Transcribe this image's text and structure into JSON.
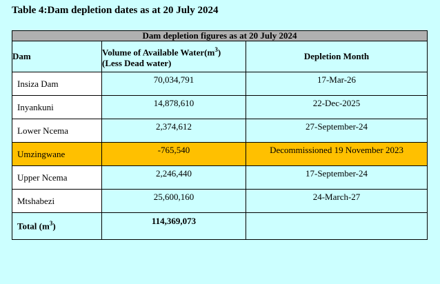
{
  "caption": "Table 4:Dam depletion dates as at 20 July 2024",
  "table": {
    "title": "Dam depletion figures as at 20 July 2024",
    "headers": {
      "dam": "Dam",
      "volume_line1": "Volume of Available Water(m",
      "volume_sup": "3",
      "volume_line1_end": ")",
      "volume_line2": "(Less Dead water)",
      "depletion": "Depletion Month"
    },
    "rows": [
      {
        "dam": "Insiza Dam",
        "volume": "70,034,791",
        "depletion": "17-Mar-26"
      },
      {
        "dam": "Inyankuni",
        "volume": "14,878,610",
        "depletion": "22-Dec-2025"
      },
      {
        "dam": "Lower Ncema",
        "volume": "2,374,612",
        "depletion": "27-September-24"
      },
      {
        "dam": "Umzingwane",
        "volume": "-765,540",
        "depletion": "Decommissioned 19 November 2023"
      },
      {
        "dam": "Upper Ncema",
        "volume": "2,246,440",
        "depletion": "17-September-24"
      },
      {
        "dam": "Mtshabezi",
        "volume": "25,600,160",
        "depletion": "24-March-27"
      }
    ],
    "total": {
      "label": "Total (m",
      "label_sup": "3",
      "label_end": ")",
      "volume": "114,369,073",
      "depletion": ""
    },
    "highlight_color": "#ffc000",
    "header_bg": "#b0b0b0",
    "page_bg": "#ccffff"
  }
}
